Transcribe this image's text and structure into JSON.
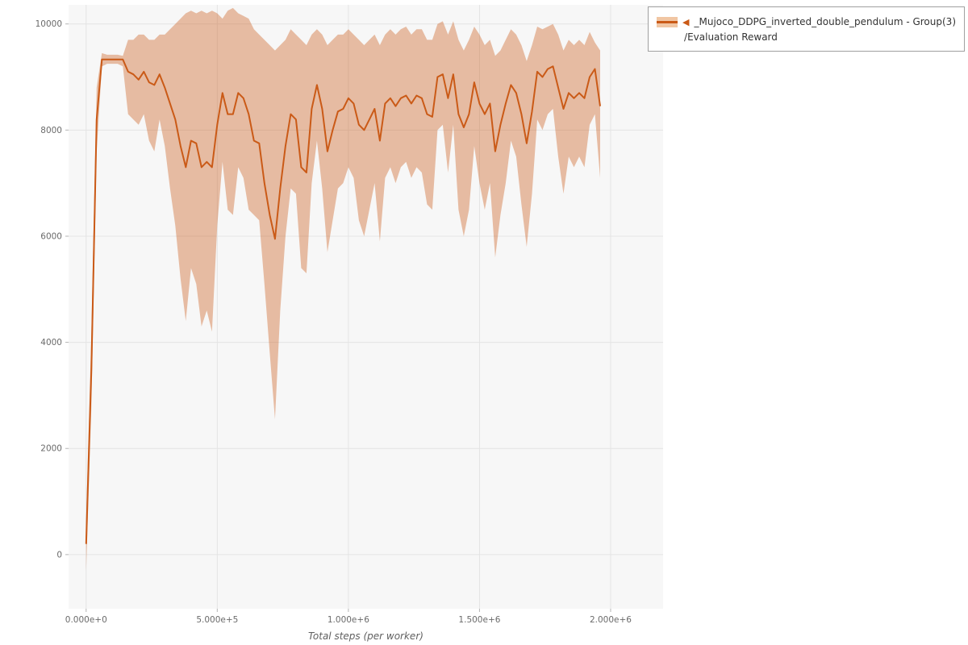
{
  "legend": {
    "toggle_icon": "◀",
    "series_label": "_Mujoco_DDPG_inverted_double_pendulum - Group(3)",
    "metric_label": "/Evaluation Reward"
  },
  "colors": {
    "accent": "#ca5a17",
    "band": "#f1c6a3",
    "grid": "#e4e4e4",
    "plot_bg": "#f7f7f7",
    "tick_text": "#6a6a6a",
    "axis_title": "#5f5f5f",
    "legend_border": "#a0a0a0"
  },
  "chart_data": {
    "type": "line",
    "title": "",
    "xlabel": "Total steps (per worker)",
    "ylabel": "",
    "grid": true,
    "legend_position": "top-right",
    "x_domain": [
      -67000,
      2200000
    ],
    "y_domain": [
      -1020,
      10360
    ],
    "x_tick_values": [
      0,
      500000,
      1000000,
      1500000,
      2000000
    ],
    "x_tick_labels": [
      "0.000e+0",
      "5.000e+5",
      "1.000e+6",
      "1.500e+6",
      "2.000e+6"
    ],
    "y_tick_values": [
      0,
      2000,
      4000,
      6000,
      8000,
      10000
    ],
    "y_tick_labels": [
      "0",
      "2000",
      "4000",
      "6000",
      "8000",
      "10000"
    ],
    "series": [
      {
        "name": "_Mujoco_DDPG_inverted_double_pendulum - Group(3) /Evaluation Reward",
        "x_start": 0,
        "x_step": 20000,
        "mean": [
          200,
          3500,
          8200,
          9330,
          9330,
          9330,
          9330,
          9330,
          9100,
          9050,
          8950,
          9100,
          8900,
          8850,
          9050,
          8800,
          8500,
          8200,
          7700,
          7300,
          7800,
          7750,
          7300,
          7400,
          7300,
          8100,
          8700,
          8300,
          8300,
          8700,
          8600,
          8300,
          7800,
          7750,
          7000,
          6400,
          5950,
          6900,
          7700,
          8300,
          8200,
          7300,
          7200,
          8400,
          8850,
          8400,
          7600,
          8000,
          8350,
          8400,
          8600,
          8500,
          8100,
          8000,
          8200,
          8400,
          7800,
          8500,
          8600,
          8450,
          8600,
          8650,
          8500,
          8650,
          8600,
          8300,
          8250,
          9000,
          9050,
          8600,
          9050,
          8300,
          8050,
          8300,
          8900,
          8500,
          8300,
          8500,
          7600,
          8100,
          8500,
          8850,
          8700,
          8300,
          7750,
          8350,
          9100,
          9000,
          9150,
          9200,
          8800,
          8400,
          8700,
          8600,
          8700,
          8600,
          9000,
          9150,
          8450
        ],
        "lower": [
          -300,
          2800,
          7600,
          9200,
          9250,
          9250,
          9250,
          9200,
          8300,
          8200,
          8100,
          8300,
          7800,
          7600,
          8200,
          7700,
          6900,
          6200,
          5200,
          4400,
          5400,
          5100,
          4300,
          4600,
          4200,
          6200,
          7400,
          6500,
          6400,
          7300,
          7100,
          6500,
          6400,
          6300,
          5100,
          3800,
          2550,
          4600,
          6000,
          6900,
          6800,
          5400,
          5300,
          7000,
          7800,
          6900,
          5700,
          6300,
          6900,
          7000,
          7300,
          7100,
          6300,
          6000,
          6500,
          7000,
          5900,
          7100,
          7300,
          7000,
          7300,
          7400,
          7100,
          7300,
          7200,
          6600,
          6500,
          8000,
          8100,
          7200,
          8100,
          6500,
          6000,
          6500,
          7700,
          7000,
          6500,
          7000,
          5600,
          6400,
          7000,
          7800,
          7500,
          6600,
          5800,
          6800,
          8200,
          8000,
          8300,
          8400,
          7500,
          6800,
          7500,
          7300,
          7500,
          7300,
          8100,
          8300,
          7100
        ],
        "upper": [
          700,
          4200,
          8800,
          9450,
          9420,
          9420,
          9420,
          9400,
          9700,
          9700,
          9800,
          9800,
          9700,
          9700,
          9800,
          9800,
          9900,
          10000,
          10100,
          10200,
          10250,
          10200,
          10250,
          10200,
          10250,
          10200,
          10100,
          10250,
          10300,
          10200,
          10150,
          10100,
          9900,
          9800,
          9700,
          9600,
          9500,
          9600,
          9700,
          9900,
          9800,
          9700,
          9600,
          9800,
          9900,
          9800,
          9600,
          9700,
          9800,
          9800,
          9900,
          9800,
          9700,
          9600,
          9700,
          9800,
          9600,
          9800,
          9900,
          9800,
          9900,
          9950,
          9800,
          9900,
          9900,
          9700,
          9700,
          10000,
          10050,
          9800,
          10050,
          9700,
          9500,
          9700,
          9950,
          9800,
          9600,
          9700,
          9400,
          9500,
          9700,
          9900,
          9800,
          9600,
          9300,
          9600,
          9950,
          9900,
          9950,
          10000,
          9800,
          9500,
          9700,
          9600,
          9700,
          9600,
          9850,
          9650,
          9500
        ]
      }
    ]
  }
}
